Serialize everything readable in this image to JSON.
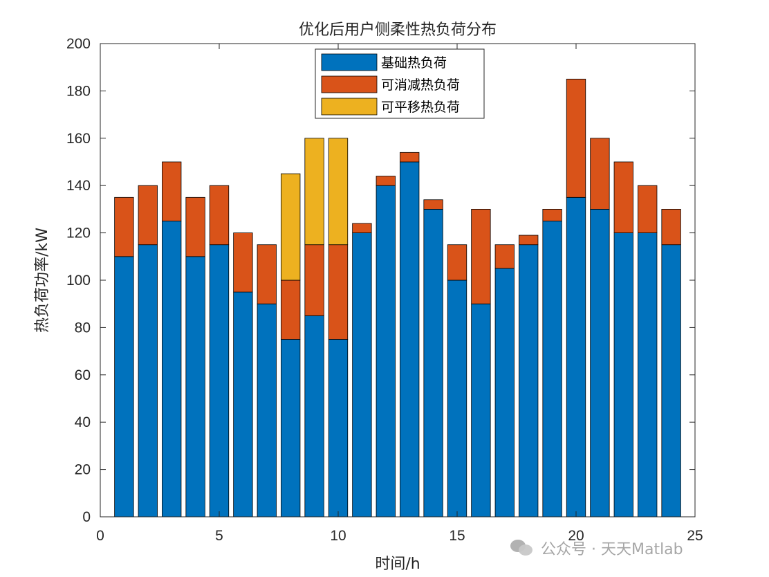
{
  "chart_data": {
    "type": "bar",
    "stacked": true,
    "title": "优化后用户侧柔性热负荷分布",
    "xlabel": "时间/h",
    "ylabel": "热负荷功率/kW",
    "xlim": [
      0,
      25
    ],
    "ylim": [
      0,
      200
    ],
    "xticks": [
      0,
      5,
      10,
      15,
      20,
      25
    ],
    "yticks": [
      0,
      20,
      40,
      60,
      80,
      100,
      120,
      140,
      160,
      180,
      200
    ],
    "legend_position": "top-center",
    "x": [
      1,
      2,
      3,
      4,
      5,
      6,
      7,
      8,
      9,
      10,
      11,
      12,
      13,
      14,
      15,
      16,
      17,
      18,
      19,
      20,
      21,
      22,
      23,
      24
    ],
    "series": [
      {
        "name": "基础热负荷",
        "color": "#0072BD",
        "values": [
          110,
          115,
          125,
          110,
          115,
          95,
          90,
          75,
          85,
          75,
          120,
          140,
          150,
          130,
          100,
          90,
          105,
          115,
          125,
          135,
          130,
          120,
          120,
          115
        ]
      },
      {
        "name": "可消减热负荷",
        "color": "#D95319",
        "values": [
          25,
          25,
          25,
          25,
          25,
          25,
          25,
          25,
          30,
          40,
          4,
          4,
          4,
          4,
          15,
          40,
          10,
          4,
          5,
          50,
          30,
          30,
          20,
          15
        ]
      },
      {
        "name": "可平移热负荷",
        "color": "#EDB120",
        "values": [
          0,
          0,
          0,
          0,
          0,
          0,
          0,
          45,
          45,
          45,
          0,
          0,
          0,
          0,
          0,
          0,
          0,
          0,
          0,
          0,
          0,
          0,
          0,
          0
        ]
      }
    ]
  },
  "watermark": {
    "icon": "wechat-icon",
    "text": "公众号 · 天天Matlab"
  }
}
